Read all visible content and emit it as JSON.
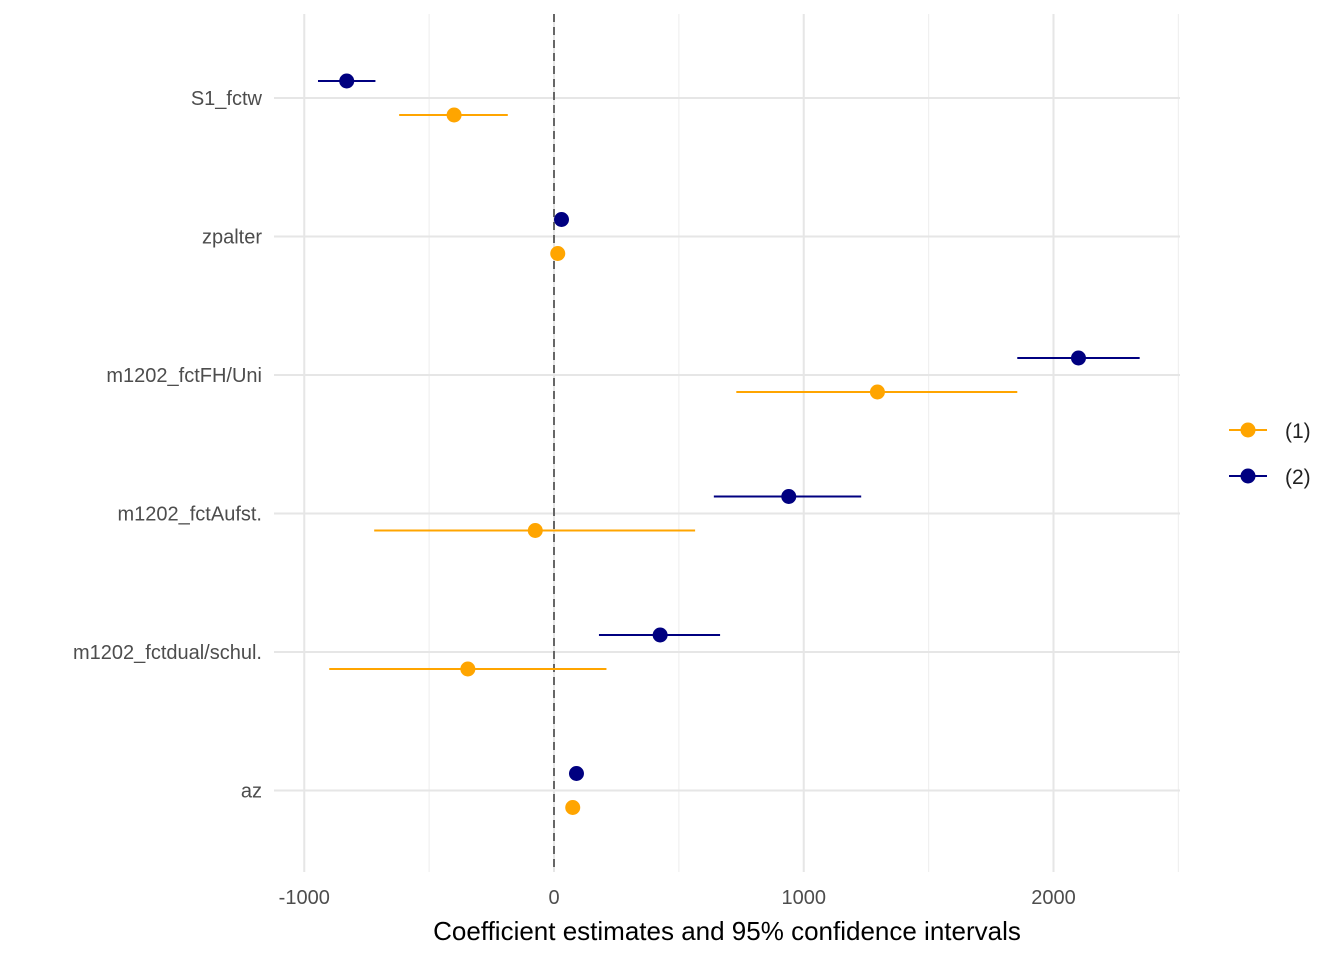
{
  "chart_data": {
    "type": "scatter",
    "subtype": "coefficient-plot",
    "title": "",
    "xlabel": "Coefficient estimates and 95% confidence intervals",
    "ylabel": "",
    "xlim": [
      -1000,
      2500
    ],
    "x_ticks": [
      -1000,
      0,
      1000,
      2000
    ],
    "x_tick_labels": [
      "-1000",
      "0",
      "1000",
      "2000"
    ],
    "categories": [
      "S1_fctw",
      "zpalter",
      "m1202_fctFH/Uni",
      "m1202_fctAufst.",
      "m1202_fctdual/schul.",
      "az"
    ],
    "reference_line": {
      "x": 0,
      "style": "dashed",
      "color": "#666666"
    },
    "grid": true,
    "legend": {
      "position": "right"
    },
    "series": [
      {
        "name": "(1)",
        "color": "#FFA500",
        "estimates": [
          -400,
          15,
          1295,
          -75,
          -345,
          75
        ],
        "ci_low": [
          -620,
          5,
          730,
          -720,
          -900,
          65
        ],
        "ci_high": [
          -185,
          25,
          1855,
          565,
          210,
          85
        ]
      },
      {
        "name": "(2)",
        "color": "#000080",
        "estimates": [
          -830,
          30,
          2100,
          940,
          425,
          90
        ],
        "ci_low": [
          -945,
          20,
          1855,
          640,
          180,
          80
        ],
        "ci_high": [
          -715,
          40,
          2345,
          1230,
          665,
          100
        ]
      }
    ]
  }
}
